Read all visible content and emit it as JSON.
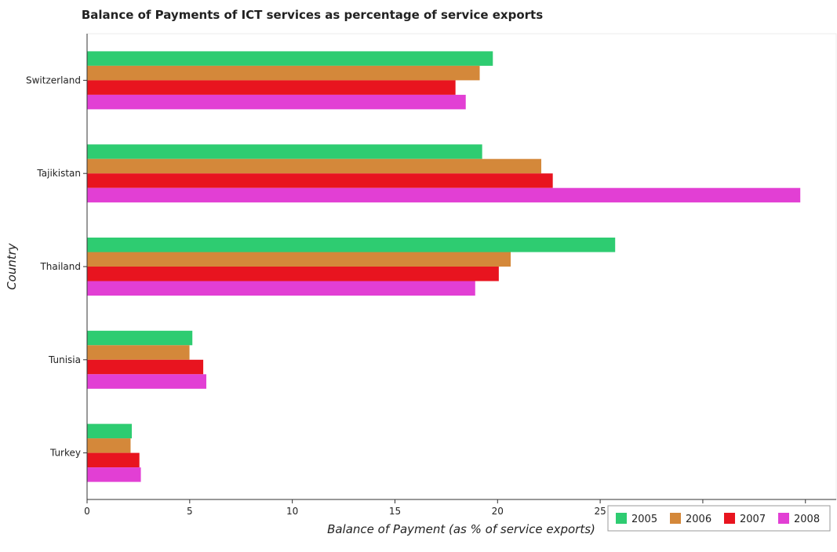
{
  "chart_data": {
    "type": "bar",
    "orientation": "horizontal",
    "title": "Balance of Payments of ICT services as percentage of service exports",
    "xlabel": "Balance of Payment (as % of service exports)",
    "ylabel": "Country",
    "categories": [
      "Switzerland",
      "Tajikistan",
      "Thailand",
      "Tunisia",
      "Turkey"
    ],
    "series": [
      {
        "name": "2005",
        "color": "#2ecc71",
        "values": [
          19.77,
          19.25,
          25.73,
          5.13,
          2.18
        ]
      },
      {
        "name": "2006",
        "color": "#d4883a",
        "values": [
          19.13,
          22.13,
          20.64,
          4.99,
          2.12
        ]
      },
      {
        "name": "2007",
        "color": "#e8141f",
        "values": [
          17.95,
          22.69,
          20.06,
          5.66,
          2.55
        ]
      },
      {
        "name": "2008",
        "color": "#e23fd4",
        "values": [
          18.45,
          34.75,
          18.91,
          5.81,
          2.62
        ]
      }
    ],
    "xlim": [
      0,
      36.5
    ],
    "xticks": [
      0,
      5,
      10,
      15,
      20,
      25,
      30,
      35
    ],
    "grid": false,
    "legend": {
      "position": "bottom-right",
      "entries": [
        "2005",
        "2006",
        "2007",
        "2008"
      ]
    }
  }
}
